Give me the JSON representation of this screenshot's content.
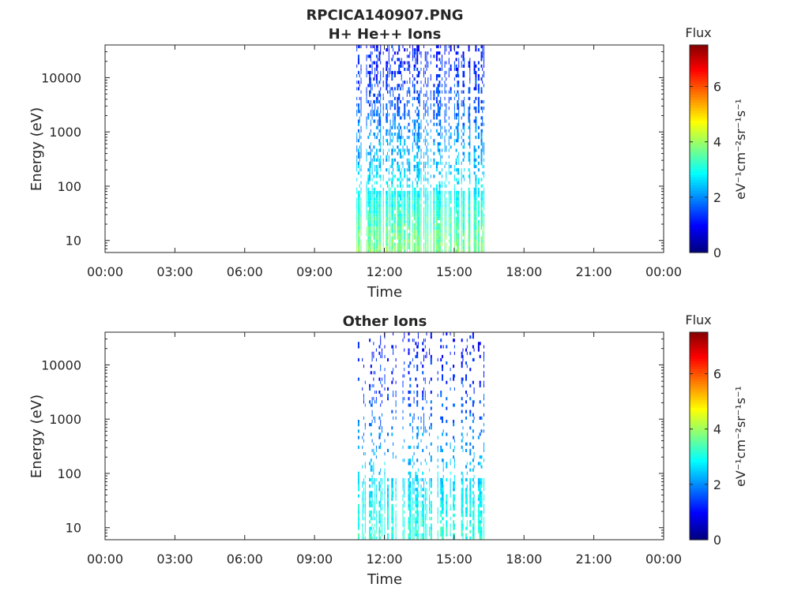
{
  "figure_title": "RPCICA140907.PNG",
  "colorbar": {
    "label": "Flux",
    "units": "eV⁻¹cm⁻²sr⁻¹s⁻¹",
    "range": [
      0,
      7.5
    ],
    "ticks": [
      "0",
      "2",
      "4",
      "6"
    ],
    "colormap": "jet",
    "colors": [
      "#00008f",
      "#0000ff",
      "#00ffff",
      "#7fff7f",
      "#ffff00",
      "#ff0000",
      "#800000"
    ]
  },
  "chart_data": [
    {
      "type": "heatmap",
      "title": "H+ He++ Ions",
      "xlabel": "Time",
      "ylabel": "Energy (eV)",
      "x_ticks": [
        "00:00",
        "03:00",
        "06:00",
        "09:00",
        "12:00",
        "15:00",
        "18:00",
        "21:00",
        "00:00"
      ],
      "x_range_hours": [
        0,
        24
      ],
      "y_ticks": [
        "10",
        "100",
        "1000",
        "10000"
      ],
      "y_scale": "log",
      "y_range": [
        6,
        40000
      ],
      "data_window_hours": [
        10.8,
        16.3
      ],
      "flux_profile": [
        {
          "energy": 10,
          "flux": 3.6
        },
        {
          "energy": 30,
          "flux": 3.2
        },
        {
          "energy": 100,
          "flux": 2.7
        },
        {
          "energy": 300,
          "flux": 2.3
        },
        {
          "energy": 1000,
          "flux": 2.0
        },
        {
          "energy": 3000,
          "flux": 1.6
        },
        {
          "energy": 10000,
          "flux": 1.3
        },
        {
          "energy": 30000,
          "flux": 1.1
        }
      ],
      "density": "high"
    },
    {
      "type": "heatmap",
      "title": "Other Ions",
      "xlabel": "Time",
      "ylabel": "Energy (eV)",
      "x_ticks": [
        "00:00",
        "03:00",
        "06:00",
        "09:00",
        "12:00",
        "15:00",
        "18:00",
        "21:00",
        "00:00"
      ],
      "x_range_hours": [
        0,
        24
      ],
      "y_ticks": [
        "10",
        "100",
        "1000",
        "10000"
      ],
      "y_scale": "log",
      "y_range": [
        6,
        40000
      ],
      "data_window_hours": [
        10.8,
        16.3
      ],
      "flux_profile": [
        {
          "energy": 10,
          "flux": 3.0
        },
        {
          "energy": 30,
          "flux": 2.8
        },
        {
          "energy": 100,
          "flux": 2.5
        },
        {
          "energy": 300,
          "flux": 2.1
        },
        {
          "energy": 1000,
          "flux": 1.7
        },
        {
          "energy": 3000,
          "flux": 1.4
        },
        {
          "energy": 10000,
          "flux": 1.2
        },
        {
          "energy": 30000,
          "flux": 1.0
        }
      ],
      "density": "sparse"
    }
  ]
}
